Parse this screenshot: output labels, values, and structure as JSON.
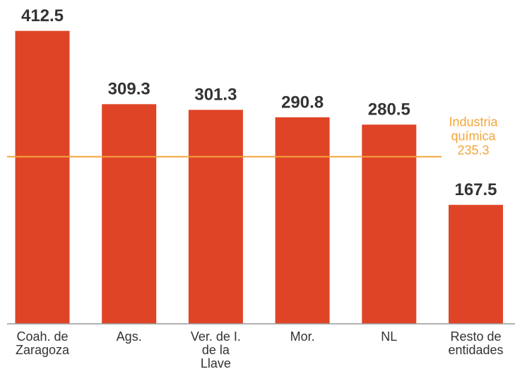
{
  "chart_data": {
    "type": "bar",
    "categories": [
      [
        "Coah. de",
        "Zaragoza"
      ],
      [
        "Ags."
      ],
      [
        "Ver. de I.",
        "de la",
        "Llave"
      ],
      [
        "Mor."
      ],
      [
        "NL"
      ],
      [
        "Resto de",
        "entidades"
      ]
    ],
    "values": [
      412.5,
      309.3,
      301.3,
      290.8,
      280.5,
      167.5
    ],
    "color": "#e04427",
    "ylim": [
      0,
      456
    ],
    "reference_line": {
      "label": [
        "Industria",
        "química"
      ],
      "value": 235.3,
      "color": "#f5a53a"
    }
  }
}
